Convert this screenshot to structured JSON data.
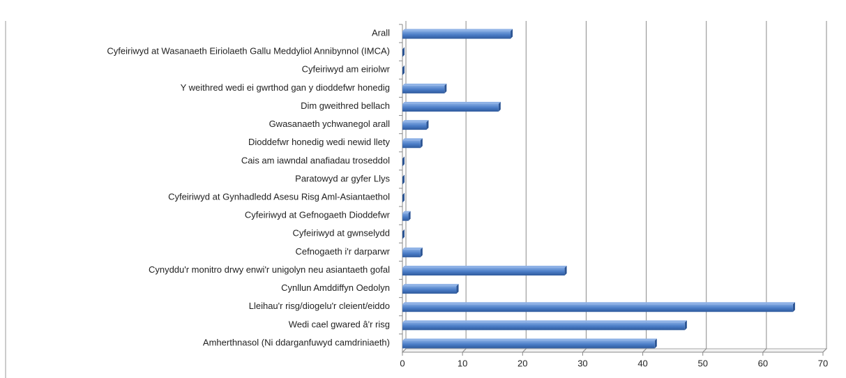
{
  "chart_data": {
    "type": "bar",
    "orientation": "horizontal",
    "color": "#4a7cc6",
    "categories": [
      "Arall",
      "Cyfeiriwyd at Wasanaeth Eiriolaeth Gallu Meddyliol Annibynnol (IMCA)",
      "Cyfeiriwyd am eiriolwr",
      "Y weithred wedi ei gwrthod gan y dioddefwr honedig",
      "Dim gweithred bellach",
      "Gwasanaeth ychwanegol arall",
      "Dioddefwr honedig wedi newid llety",
      "Cais am iawndal anafiadau troseddol",
      "Paratowyd ar gyfer Llys",
      "Cyfeiriwyd at Gynhadledd Asesu Risg Aml-Asiantaethol",
      "Cyfeiriwyd at Gefnogaeth Dioddefwr",
      "Cyfeiriwyd at gwnselydd",
      "Cefnogaeth i'r darparwr",
      "Cynyddu'r monitro drwy enwi'r unigolyn neu asiantaeth gofal",
      "Cynllun Amddiffyn Oedolyn",
      "Lleihau'r risg/diogelu'r cleient/eiddo",
      "Wedi cael gwared â'r risg",
      "Amherthnasol (Ni ddarganfuwyd camdriniaeth)"
    ],
    "values": [
      18,
      0,
      0,
      7,
      16,
      4,
      3,
      0,
      0,
      0,
      1,
      0,
      3,
      27,
      9,
      65,
      47,
      42
    ],
    "xlim": [
      0,
      70
    ],
    "xticks": [
      0,
      10,
      20,
      30,
      40,
      50,
      60,
      70
    ],
    "grid": true
  }
}
